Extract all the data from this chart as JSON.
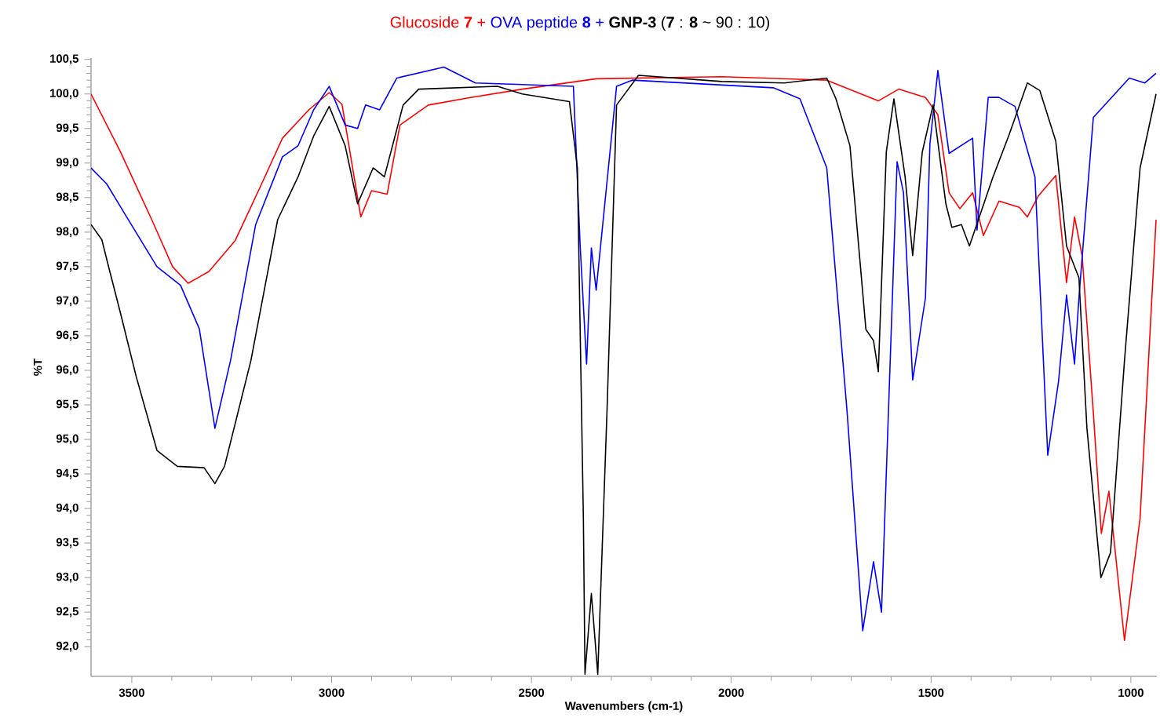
{
  "chart_data": {
    "type": "line",
    "xlabel": "Wavenumbers (cm-1)",
    "ylabel": "%T",
    "legend": "top",
    "marker": "none",
    "line_style": "solid",
    "grid": false,
    "xlim": [
      3602,
      935
    ],
    "xticks": [
      3500,
      3000,
      2500,
      2000,
      1500,
      1000
    ],
    "ylim": [
      91.57,
      100.52
    ],
    "yticks": [
      {
        "value": 92,
        "label": "92,0"
      },
      {
        "value": 92.5,
        "label": "92,5"
      },
      {
        "value": 93,
        "label": "93,0"
      },
      {
        "value": 93.5,
        "label": "93,5"
      },
      {
        "value": 94,
        "label": "94,0"
      },
      {
        "value": 94.5,
        "label": "94,5"
      },
      {
        "value": 95,
        "label": "95,0"
      },
      {
        "value": 95.5,
        "label": "95,5"
      },
      {
        "value": 96,
        "label": "96,0"
      },
      {
        "value": 96.5,
        "label": "96,5"
      },
      {
        "value": 97,
        "label": "97,0"
      },
      {
        "value": 97.5,
        "label": "97,5"
      },
      {
        "value": 98,
        "label": "98,0"
      },
      {
        "value": 98.5,
        "label": "98,5"
      },
      {
        "value": 99,
        "label": "99,0"
      },
      {
        "value": 99.5,
        "label": "99,5"
      },
      {
        "value": 100,
        "label": "100,0"
      },
      {
        "value": 100.5,
        "label": "100,5"
      }
    ],
    "series": [
      {
        "name": "Glucoside **7** +",
        "color": "#ff0000",
        "x": [
          3602,
          3529,
          3450,
          3398,
          3359,
          3307,
          3241,
          3175,
          3123,
          3057,
          3006,
          2974,
          2927,
          2900,
          2861,
          2829,
          2758,
          2652,
          2523,
          2338,
          2024,
          1761,
          1632,
          1581,
          1514,
          1483,
          1455,
          1428,
          1396,
          1369,
          1330,
          1279,
          1259,
          1232,
          1188,
          1161,
          1141,
          1122,
          1094,
          1074,
          1055,
          1016,
          977,
          937
        ],
        "values": [
          100.0,
          99.17,
          98.18,
          97.5,
          97.26,
          97.43,
          97.88,
          98.7,
          99.36,
          99.77,
          100.02,
          99.85,
          98.22,
          98.6,
          98.55,
          99.55,
          99.84,
          99.95,
          100.07,
          100.22,
          100.25,
          100.2,
          99.9,
          100.07,
          99.95,
          99.7,
          98.57,
          98.34,
          98.57,
          97.95,
          98.45,
          98.36,
          98.22,
          98.52,
          98.82,
          97.27,
          98.22,
          97.66,
          95.39,
          93.64,
          94.25,
          92.09,
          93.86,
          98.18
        ]
      },
      {
        "name": "OVA peptide **8** +",
        "color": "#0000ff",
        "x": [
          3602,
          3563,
          3516,
          3437,
          3378,
          3331,
          3292,
          3253,
          3190,
          3123,
          3084,
          3045,
          3006,
          2966,
          2935,
          2915,
          2880,
          2837,
          2719,
          2640,
          2395,
          2378,
          2362,
          2350,
          2338,
          2287,
          2248,
          1895,
          1828,
          1761,
          1710,
          1671,
          1644,
          1624,
          1585,
          1569,
          1546,
          1514,
          1503,
          1483,
          1455,
          1396,
          1385,
          1357,
          1330,
          1290,
          1240,
          1208,
          1181,
          1161,
          1141,
          1130,
          1094,
          1004,
          965,
          937
        ],
        "values": [
          98.93,
          98.7,
          98.25,
          97.5,
          97.23,
          96.6,
          95.16,
          96.14,
          98.11,
          99.09,
          99.25,
          99.77,
          100.11,
          99.55,
          99.5,
          99.84,
          99.77,
          100.23,
          100.39,
          100.16,
          100.11,
          97.8,
          96.09,
          97.77,
          97.16,
          100.11,
          100.2,
          100.09,
          99.93,
          98.93,
          95.39,
          92.23,
          93.23,
          92.5,
          99.02,
          98.57,
          95.86,
          97.05,
          99.27,
          100.34,
          99.14,
          99.36,
          98.03,
          99.95,
          99.95,
          99.82,
          98.8,
          94.77,
          95.84,
          97.09,
          96.09,
          97.05,
          99.66,
          100.23,
          100.16,
          100.3
        ]
      },
      {
        "name": "**GNP-3** (**7** : **8** ~ 90 : 10)",
        "color": "#000000",
        "x": [
          3602,
          3575,
          3555,
          3528,
          3489,
          3437,
          3386,
          3319,
          3292,
          3268,
          3202,
          3135,
          3084,
          3045,
          3006,
          2966,
          2935,
          2896,
          2868,
          2821,
          2782,
          2585,
          2523,
          2405,
          2385,
          2370,
          2366,
          2350,
          2334,
          2311,
          2287,
          2232,
          2024,
          1867,
          1761,
          1738,
          1703,
          1663,
          1644,
          1632,
          1612,
          1593,
          1565,
          1546,
          1522,
          1495,
          1463,
          1448,
          1424,
          1404,
          1345,
          1306,
          1259,
          1228,
          1188,
          1161,
          1130,
          1110,
          1075,
          1051,
          1016,
          977,
          937
        ],
        "values": [
          98.11,
          97.89,
          97.43,
          96.82,
          95.91,
          94.84,
          94.61,
          94.59,
          94.36,
          94.61,
          96.14,
          98.18,
          98.8,
          99.39,
          99.82,
          99.25,
          98.41,
          98.93,
          98.8,
          99.84,
          100.07,
          100.11,
          100.0,
          99.89,
          98.93,
          93.86,
          91.6,
          92.77,
          91.6,
          95.39,
          99.84,
          100.27,
          100.18,
          100.16,
          100.23,
          99.93,
          99.25,
          96.59,
          96.43,
          95.98,
          99.16,
          99.93,
          98.8,
          97.66,
          99.16,
          99.84,
          98.41,
          98.07,
          98.11,
          97.8,
          98.8,
          99.39,
          100.16,
          100.05,
          99.32,
          97.8,
          97.34,
          95.16,
          93.0,
          93.36,
          96.14,
          98.93,
          100.0
        ]
      }
    ]
  }
}
